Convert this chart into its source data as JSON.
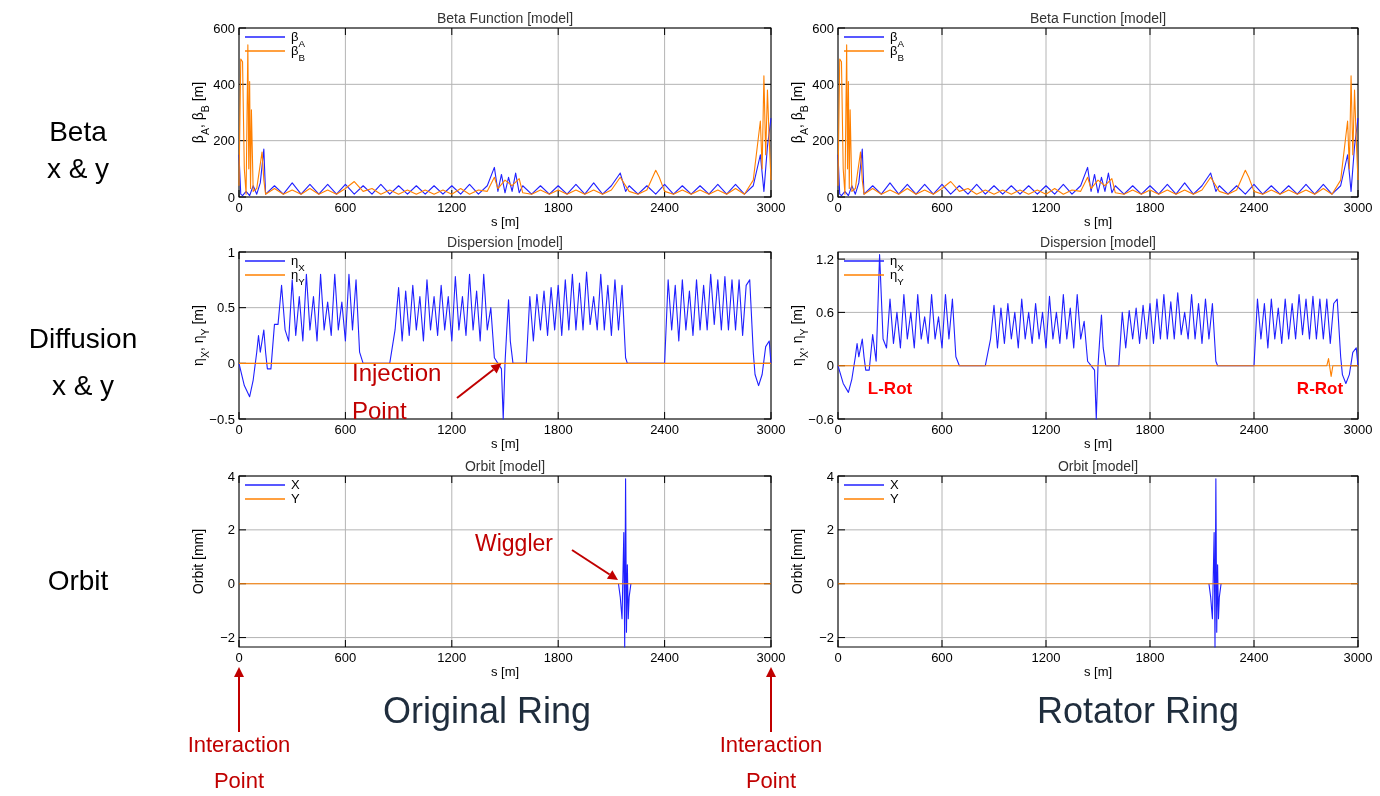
{
  "chart_data": [
    {
      "type": "line",
      "title": "Beta Function [model]",
      "xlabel": "s [m]",
      "ylabel": "β$_{A}$, β$_{B}$ [m]",
      "xlim": [
        0,
        3000
      ],
      "xticks": [
        0,
        600,
        1200,
        1800,
        2400,
        3000
      ],
      "ylim": [
        0,
        600
      ],
      "yticks": [
        0,
        200,
        400,
        600
      ],
      "grid": true,
      "legend": "top left",
      "annotations": [
        "Beta x & y"
      ],
      "series": [
        {
          "name": "β$_{A}$",
          "color": "#2020ff",
          "x": [
            0,
            10,
            20,
            40,
            60,
            80,
            100,
            120,
            140,
            150,
            200,
            250,
            300,
            350,
            400,
            450,
            500,
            550,
            600,
            650,
            700,
            750,
            800,
            850,
            900,
            950,
            1000,
            1050,
            1100,
            1150,
            1200,
            1250,
            1300,
            1350,
            1400,
            1440,
            1460,
            1480,
            1500,
            1520,
            1540,
            1560,
            1580,
            1600,
            1650,
            1700,
            1750,
            1800,
            1850,
            1900,
            1950,
            2000,
            2050,
            2100,
            2150,
            2180,
            2200,
            2250,
            2300,
            2350,
            2400,
            2450,
            2500,
            2550,
            2600,
            2650,
            2700,
            2750,
            2800,
            2850,
            2900,
            2940,
            2960,
            2980,
            2990,
            3000
          ],
          "values": [
            150,
            10,
            5,
            20,
            5,
            40,
            10,
            50,
            170,
            10,
            40,
            10,
            50,
            10,
            45,
            10,
            45,
            10,
            45,
            10,
            40,
            10,
            45,
            10,
            40,
            10,
            40,
            10,
            40,
            10,
            40,
            10,
            45,
            10,
            40,
            105,
            20,
            80,
            15,
            70,
            20,
            85,
            15,
            40,
            10,
            40,
            10,
            40,
            10,
            45,
            10,
            50,
            10,
            40,
            85,
            20,
            40,
            10,
            40,
            10,
            45,
            10,
            40,
            10,
            40,
            10,
            45,
            10,
            45,
            10,
            40,
            150,
            20,
            180,
            230,
            280
          ]
        },
        {
          "name": "β$_{B}$",
          "color": "#ff8000",
          "x": [
            0,
            10,
            20,
            30,
            40,
            50,
            55,
            60,
            65,
            70,
            80,
            100,
            130,
            140,
            150,
            200,
            250,
            300,
            350,
            400,
            450,
            500,
            550,
            600,
            650,
            700,
            750,
            800,
            850,
            900,
            950,
            1000,
            1050,
            1100,
            1150,
            1200,
            1250,
            1300,
            1350,
            1400,
            1440,
            1460,
            1500,
            1540,
            1580,
            1600,
            1650,
            1700,
            1750,
            1800,
            1850,
            1900,
            1950,
            2000,
            2050,
            2100,
            2150,
            2200,
            2250,
            2300,
            2350,
            2370,
            2400,
            2450,
            2500,
            2550,
            2600,
            2650,
            2700,
            2750,
            2800,
            2850,
            2900,
            2940,
            2950,
            2960,
            2970,
            2980,
            2990,
            3000
          ],
          "values": [
            40,
            490,
            480,
            100,
            10,
            540,
            100,
            410,
            30,
            310,
            20,
            30,
            160,
            60,
            10,
            30,
            10,
            25,
            10,
            30,
            10,
            25,
            10,
            30,
            55,
            20,
            30,
            10,
            25,
            10,
            25,
            10,
            25,
            10,
            25,
            10,
            30,
            10,
            25,
            20,
            70,
            30,
            60,
            40,
            65,
            15,
            10,
            25,
            10,
            25,
            10,
            25,
            10,
            25,
            10,
            25,
            70,
            20,
            10,
            25,
            95,
            70,
            20,
            10,
            25,
            10,
            25,
            10,
            25,
            10,
            30,
            10,
            60,
            270,
            100,
            430,
            150,
            380,
            200,
            60
          ]
        }
      ]
    },
    {
      "type": "line",
      "title": "Beta Function [model]",
      "xlabel": "s [m]",
      "ylabel": "β$_{A}$, β$_{B}$ [m]",
      "xlim": [
        0,
        3000
      ],
      "xticks": [
        0,
        600,
        1200,
        1800,
        2400,
        3000
      ],
      "ylim": [
        0,
        600
      ],
      "yticks": [
        0,
        200,
        400,
        600
      ],
      "grid": true,
      "legend": "top left",
      "series": [
        {
          "name": "β$_{A}$",
          "color": "#2020ff",
          "x": [
            0,
            10,
            20,
            40,
            60,
            80,
            100,
            120,
            140,
            150,
            200,
            250,
            300,
            350,
            400,
            450,
            500,
            550,
            600,
            650,
            700,
            750,
            800,
            850,
            900,
            950,
            1000,
            1050,
            1100,
            1150,
            1200,
            1250,
            1300,
            1350,
            1400,
            1440,
            1460,
            1480,
            1500,
            1520,
            1540,
            1560,
            1580,
            1600,
            1650,
            1700,
            1750,
            1800,
            1850,
            1900,
            1950,
            2000,
            2050,
            2100,
            2150,
            2180,
            2200,
            2250,
            2300,
            2350,
            2400,
            2450,
            2500,
            2550,
            2600,
            2650,
            2700,
            2750,
            2800,
            2850,
            2900,
            2940,
            2960,
            2980,
            2990,
            3000
          ],
          "values": [
            150,
            10,
            5,
            20,
            5,
            40,
            10,
            50,
            170,
            10,
            40,
            10,
            50,
            10,
            45,
            10,
            45,
            10,
            45,
            10,
            40,
            10,
            45,
            10,
            40,
            10,
            40,
            10,
            40,
            10,
            40,
            10,
            45,
            10,
            40,
            105,
            20,
            80,
            15,
            70,
            20,
            85,
            15,
            40,
            10,
            40,
            10,
            40,
            10,
            45,
            10,
            50,
            10,
            40,
            85,
            20,
            40,
            10,
            40,
            10,
            45,
            10,
            40,
            10,
            40,
            10,
            45,
            10,
            45,
            10,
            40,
            150,
            20,
            180,
            230,
            280
          ]
        },
        {
          "name": "β$_{B}$",
          "color": "#ff8000",
          "x": [
            0,
            10,
            20,
            30,
            40,
            50,
            55,
            60,
            65,
            70,
            80,
            100,
            130,
            140,
            150,
            200,
            250,
            300,
            350,
            400,
            450,
            500,
            550,
            600,
            650,
            700,
            750,
            800,
            850,
            900,
            950,
            1000,
            1050,
            1100,
            1150,
            1200,
            1250,
            1300,
            1350,
            1400,
            1440,
            1460,
            1500,
            1540,
            1580,
            1600,
            1650,
            1700,
            1750,
            1800,
            1850,
            1900,
            1950,
            2000,
            2050,
            2100,
            2150,
            2200,
            2250,
            2300,
            2350,
            2370,
            2400,
            2450,
            2500,
            2550,
            2600,
            2650,
            2700,
            2750,
            2800,
            2850,
            2900,
            2940,
            2950,
            2960,
            2970,
            2980,
            2990,
            3000
          ],
          "values": [
            40,
            490,
            480,
            100,
            10,
            540,
            100,
            410,
            30,
            310,
            20,
            30,
            160,
            60,
            10,
            30,
            10,
            25,
            10,
            30,
            10,
            25,
            10,
            30,
            55,
            20,
            30,
            10,
            25,
            10,
            25,
            10,
            25,
            10,
            25,
            10,
            30,
            10,
            25,
            20,
            70,
            30,
            60,
            40,
            65,
            15,
            10,
            25,
            10,
            25,
            10,
            25,
            10,
            25,
            10,
            25,
            70,
            20,
            10,
            25,
            95,
            70,
            20,
            10,
            25,
            10,
            25,
            10,
            25,
            10,
            30,
            10,
            60,
            270,
            100,
            430,
            150,
            380,
            200,
            60
          ]
        }
      ]
    },
    {
      "type": "line",
      "title": "Dispersion [model]",
      "xlabel": "s [m]",
      "ylabel": "η$_{X}$, η$_{Y}$ [m]",
      "xlim": [
        0,
        3000
      ],
      "xticks": [
        0,
        600,
        1200,
        1800,
        2400,
        3000
      ],
      "ylim": [
        -0.5,
        1.0
      ],
      "yticks": [
        {
          "value": -0.5,
          "label": "−0.5"
        },
        0,
        0.5,
        1.0
      ],
      "grid": true,
      "legend": "top left",
      "annotations": [
        "Diffusion x & y",
        {
          "text": "Injection Point",
          "x": 1480,
          "y": 0
        }
      ],
      "series": [
        {
          "name": "η$_{X}$",
          "color": "#2020ff",
          "x": [
            0,
            30,
            60,
            80,
            100,
            110,
            120,
            140,
            150,
            160,
            180,
            200,
            220,
            240,
            260,
            280,
            300,
            320,
            340,
            360,
            380,
            400,
            420,
            440,
            460,
            480,
            500,
            520,
            540,
            560,
            580,
            600,
            620,
            640,
            660,
            680,
            700,
            850,
            880,
            900,
            920,
            940,
            960,
            980,
            1000,
            1020,
            1040,
            1060,
            1080,
            1100,
            1120,
            1140,
            1160,
            1180,
            1200,
            1220,
            1240,
            1260,
            1280,
            1300,
            1320,
            1340,
            1360,
            1380,
            1400,
            1420,
            1440,
            1460,
            1480,
            1490,
            1500,
            1510,
            1520,
            1530,
            1545,
            1620,
            1640,
            1660,
            1680,
            1700,
            1720,
            1740,
            1760,
            1780,
            1800,
            1820,
            1840,
            1860,
            1880,
            1900,
            1920,
            1940,
            1960,
            1980,
            2000,
            2020,
            2040,
            2060,
            2080,
            2100,
            2120,
            2140,
            2160,
            2180,
            2190,
            2400,
            2420,
            2440,
            2460,
            2480,
            2500,
            2520,
            2540,
            2560,
            2580,
            2600,
            2620,
            2640,
            2660,
            2680,
            2700,
            2720,
            2740,
            2760,
            2780,
            2800,
            2820,
            2840,
            2860,
            2880,
            2900,
            2910,
            2930,
            2950,
            2970,
            2990,
            3000
          ],
          "values": [
            0,
            -0.2,
            -0.3,
            -0.15,
            0.1,
            0.25,
            0.1,
            0.3,
            0.1,
            -0.05,
            -0.05,
            0.35,
            0.35,
            0.7,
            0.3,
            0.2,
            0.75,
            0.25,
            0.6,
            0.2,
            0.8,
            0.3,
            0.6,
            0.2,
            0.8,
            0.3,
            0.55,
            0.25,
            0.8,
            0.3,
            0.55,
            0.2,
            0.8,
            0.3,
            0.75,
            0.1,
            0,
            0,
            0.3,
            0.68,
            0.2,
            0.65,
            0.25,
            0.7,
            0.3,
            0.6,
            0.2,
            0.75,
            0.3,
            0.6,
            0.25,
            0.7,
            0.3,
            0.6,
            0.2,
            0.78,
            0.3,
            0.6,
            0.25,
            0.8,
            0.3,
            0.65,
            0.2,
            0.8,
            0.3,
            0.5,
            0.05,
            0,
            -0.05,
            -0.5,
            0,
            0.3,
            0.57,
            0.2,
            0,
            0,
            0.6,
            0.2,
            0.62,
            0.3,
            0.65,
            0.25,
            0.68,
            0.3,
            0.7,
            0.25,
            0.75,
            0.3,
            0.8,
            0.3,
            0.72,
            0.3,
            0.82,
            0.35,
            0.6,
            0.3,
            0.8,
            0.3,
            0.7,
            0.25,
            0.75,
            0.3,
            0.7,
            0.05,
            0,
            0,
            0.75,
            0.3,
            0.7,
            0.2,
            0.75,
            0.3,
            0.65,
            0.25,
            0.75,
            0.3,
            0.7,
            0.3,
            0.8,
            0.35,
            0.75,
            0.3,
            0.78,
            0.3,
            0.75,
            0.3,
            0.75,
            0.25,
            0.7,
            0.75,
            0.1,
            -0.1,
            -0.2,
            -0.1,
            0.15,
            0.2,
            0
          ]
        },
        {
          "name": "η$_{Y}$",
          "color": "#ff8000",
          "x": [
            0,
            3000
          ],
          "values": [
            0,
            0
          ]
        }
      ]
    },
    {
      "type": "line",
      "title": "Dispersion [model]",
      "xlabel": "s [m]",
      "ylabel": "η$_{X}$, η$_{Y}$ [m]",
      "xlim": [
        0,
        3000
      ],
      "xticks": [
        0,
        600,
        1200,
        1800,
        2400,
        3000
      ],
      "ylim": [
        -0.6,
        1.28
      ],
      "yticks": [
        {
          "value": -0.6,
          "label": "−0.6"
        },
        0,
        0.6,
        1.2
      ],
      "grid": true,
      "legend": "top left",
      "annotations": [
        "L-Rot",
        "R-Rot"
      ],
      "series": [
        {
          "name": "η$_{X}$",
          "color": "#2020ff",
          "x": [
            0,
            30,
            60,
            80,
            100,
            110,
            120,
            140,
            150,
            160,
            180,
            200,
            220,
            240,
            260,
            280,
            300,
            320,
            340,
            360,
            380,
            400,
            420,
            440,
            460,
            480,
            500,
            520,
            540,
            560,
            580,
            600,
            620,
            640,
            660,
            680,
            700,
            850,
            880,
            900,
            920,
            940,
            960,
            980,
            1000,
            1020,
            1040,
            1060,
            1080,
            1100,
            1120,
            1140,
            1160,
            1180,
            1200,
            1220,
            1240,
            1260,
            1280,
            1300,
            1320,
            1340,
            1360,
            1380,
            1400,
            1420,
            1440,
            1460,
            1480,
            1490,
            1500,
            1510,
            1520,
            1530,
            1545,
            1620,
            1640,
            1660,
            1680,
            1700,
            1720,
            1740,
            1760,
            1780,
            1800,
            1820,
            1840,
            1860,
            1880,
            1900,
            1920,
            1940,
            1960,
            1980,
            2000,
            2020,
            2040,
            2060,
            2080,
            2100,
            2120,
            2140,
            2160,
            2180,
            2190,
            2400,
            2420,
            2440,
            2460,
            2480,
            2500,
            2520,
            2540,
            2560,
            2580,
            2600,
            2620,
            2640,
            2660,
            2680,
            2700,
            2720,
            2740,
            2760,
            2780,
            2800,
            2820,
            2840,
            2860,
            2880,
            2900,
            2910,
            2930,
            2950,
            2970,
            2990,
            3000
          ],
          "values": [
            0,
            -0.2,
            -0.3,
            -0.15,
            0.1,
            0.25,
            0.1,
            0.3,
            0.1,
            -0.05,
            -0.05,
            0.35,
            0.05,
            1.25,
            0.3,
            0.2,
            0.75,
            0.25,
            0.6,
            0.2,
            0.8,
            0.3,
            0.6,
            0.2,
            0.8,
            0.3,
            0.55,
            0.25,
            0.8,
            0.3,
            0.55,
            0.2,
            0.8,
            0.3,
            0.75,
            0.1,
            0,
            0,
            0.3,
            0.68,
            0.2,
            0.65,
            0.25,
            0.7,
            0.3,
            0.6,
            0.2,
            0.75,
            0.3,
            0.6,
            0.25,
            0.7,
            0.3,
            0.6,
            0.2,
            0.78,
            0.3,
            0.6,
            0.25,
            0.8,
            0.3,
            0.65,
            0.2,
            0.8,
            0.3,
            0.5,
            0.05,
            0,
            -0.05,
            -0.6,
            0,
            0.3,
            0.57,
            0.2,
            0,
            0,
            0.6,
            0.2,
            0.62,
            0.3,
            0.65,
            0.25,
            0.68,
            0.3,
            0.7,
            0.25,
            0.75,
            0.3,
            0.8,
            0.3,
            0.72,
            0.3,
            0.82,
            0.35,
            0.6,
            0.3,
            0.8,
            0.3,
            0.7,
            0.25,
            0.75,
            0.3,
            0.7,
            0.05,
            0,
            0,
            0.75,
            0.3,
            0.7,
            0.2,
            0.75,
            0.3,
            0.65,
            0.25,
            0.75,
            0.3,
            0.7,
            0.3,
            0.8,
            0.35,
            0.75,
            0.3,
            0.78,
            0.3,
            0.75,
            0.3,
            0.75,
            0.25,
            0.7,
            0.75,
            0.1,
            -0.1,
            -0.2,
            -0.1,
            0.15,
            0.2,
            0
          ]
        },
        {
          "name": "η$_{Y}$",
          "color": "#ff8000",
          "x": [
            0,
            2820,
            2830,
            2845,
            2855,
            3000
          ],
          "values": [
            0,
            0,
            0.08,
            -0.12,
            0,
            0
          ]
        }
      ]
    },
    {
      "type": "line",
      "title": "Orbit [model]",
      "xlabel": "s [m]",
      "ylabel": "Orbit [mm]",
      "xlim": [
        0,
        3000
      ],
      "xticks": [
        0,
        600,
        1200,
        1800,
        2400,
        3000
      ],
      "ylim": [
        -2.35,
        4
      ],
      "yticks": [
        {
          "value": -2,
          "label": "−2"
        },
        0,
        2,
        4
      ],
      "grid": true,
      "legend": "top left",
      "annotations": [
        "Orbit",
        "Original Ring",
        "Wiggler",
        "Interaction Point",
        "Interaction Point"
      ],
      "series": [
        {
          "name": "X",
          "color": "#2020ff",
          "x": [
            2140,
            2150,
            2160,
            2170,
            2175,
            2180,
            2185,
            2190,
            2195,
            2200,
            2210
          ],
          "values": [
            0,
            -0.5,
            -1.3,
            1.9,
            -2.35,
            3.9,
            -1.8,
            0.7,
            -1.3,
            -0.5,
            0
          ]
        },
        {
          "name": "Y",
          "color": "#ff8000",
          "x": [
            0,
            3000
          ],
          "values": [
            0,
            0
          ]
        }
      ]
    },
    {
      "type": "line",
      "title": "Orbit [model]",
      "xlabel": "s [m]",
      "ylabel": "Orbit [mm]",
      "xlim": [
        0,
        3000
      ],
      "xticks": [
        0,
        600,
        1200,
        1800,
        2400,
        3000
      ],
      "ylim": [
        -2.35,
        4
      ],
      "yticks": [
        {
          "value": -2,
          "label": "−2"
        },
        0,
        2,
        4
      ],
      "grid": true,
      "legend": "top left",
      "annotations": [
        "Rotator Ring"
      ],
      "series": [
        {
          "name": "X",
          "color": "#2020ff",
          "x": [
            2140,
            2150,
            2160,
            2170,
            2175,
            2180,
            2185,
            2190,
            2195,
            2200,
            2210
          ],
          "values": [
            0,
            -0.5,
            -1.3,
            1.9,
            -2.35,
            3.9,
            -1.8,
            0.7,
            -1.3,
            -0.5,
            0
          ]
        },
        {
          "name": "Y",
          "color": "#ff8000",
          "x": [
            0,
            3000
          ],
          "values": [
            0,
            0
          ]
        }
      ]
    }
  ]
}
